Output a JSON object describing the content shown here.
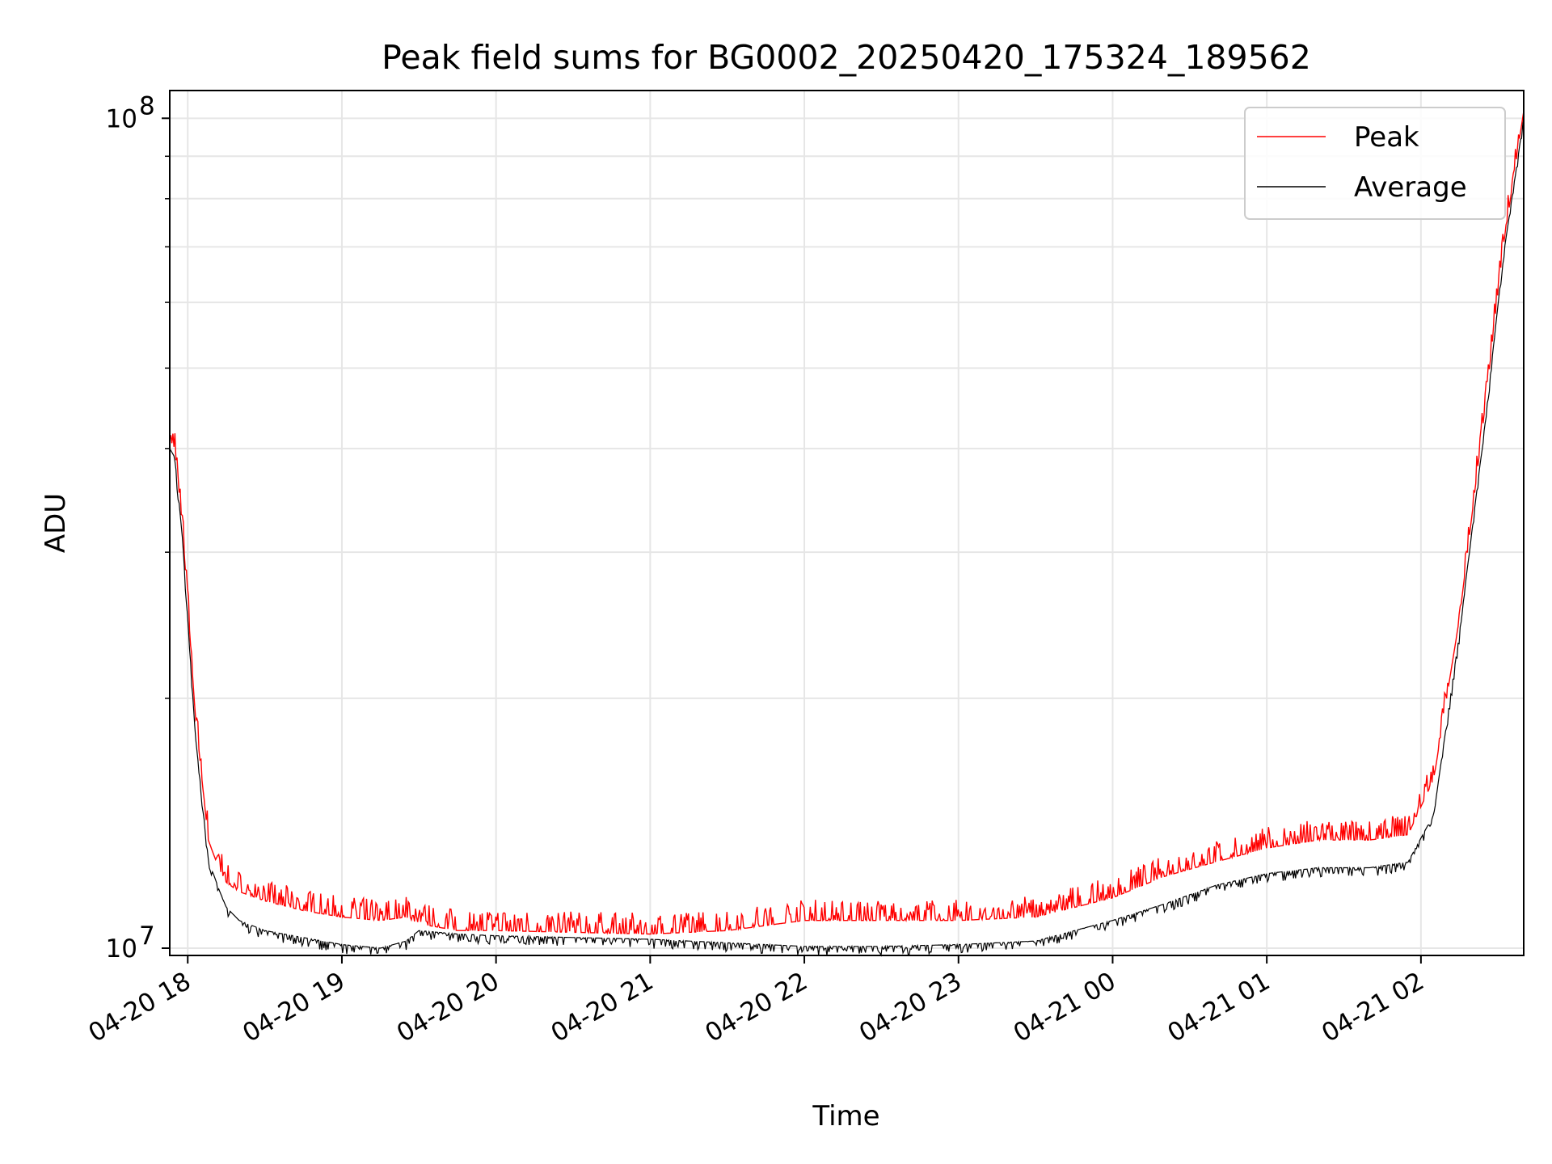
{
  "chart_data": {
    "type": "line",
    "title": "Peak field sums for BG0002_20250420_175324_189562",
    "xlabel": "Time",
    "ylabel": "ADU",
    "yscale": "log",
    "ylim": [
      9800000,
      108000000
    ],
    "xlim": [
      "2025-04-20 17:53",
      "2025-04-21 02:40"
    ],
    "x_ticks": [
      {
        "value": "2025-04-20 18:00",
        "label": "04-20 18"
      },
      {
        "value": "2025-04-20 19:00",
        "label": "04-20 19"
      },
      {
        "value": "2025-04-20 20:00",
        "label": "04-20 20"
      },
      {
        "value": "2025-04-20 21:00",
        "label": "04-20 21"
      },
      {
        "value": "2025-04-20 22:00",
        "label": "04-20 22"
      },
      {
        "value": "2025-04-20 23:00",
        "label": "04-20 23"
      },
      {
        "value": "2025-04-21 00:00",
        "label": "04-21 00"
      },
      {
        "value": "2025-04-21 01:00",
        "label": "04-21 01"
      },
      {
        "value": "2025-04-21 02:00",
        "label": "04-21 02"
      }
    ],
    "y_ticks_major": [
      {
        "value": 10000000,
        "base": "10",
        "exp": "7"
      },
      {
        "value": 100000000,
        "base": "10",
        "exp": "8"
      }
    ],
    "y_ticks_minor": [
      20000000,
      30000000,
      40000000,
      50000000,
      60000000,
      70000000,
      80000000,
      90000000
    ],
    "grid": true,
    "legend_position": "top-right",
    "x": [
      "2025-04-20 17:53",
      "2025-04-20 17:55",
      "2025-04-20 17:58",
      "2025-04-20 18:03",
      "2025-04-20 18:08",
      "2025-04-20 18:12",
      "2025-04-20 18:15",
      "2025-04-20 18:20",
      "2025-04-20 18:30",
      "2025-04-20 18:45",
      "2025-04-20 19:00",
      "2025-04-20 19:15",
      "2025-04-20 19:25",
      "2025-04-20 19:30",
      "2025-04-20 19:45",
      "2025-04-20 20:00",
      "2025-04-20 20:30",
      "2025-04-20 21:00",
      "2025-04-20 21:30",
      "2025-04-20 22:00",
      "2025-04-20 22:30",
      "2025-04-20 23:00",
      "2025-04-20 23:30",
      "2025-04-21 00:00",
      "2025-04-21 00:20",
      "2025-04-21 00:40",
      "2025-04-21 01:00",
      "2025-04-21 01:20",
      "2025-04-21 01:40",
      "2025-04-21 01:55",
      "2025-04-21 02:05",
      "2025-04-21 02:15",
      "2025-04-21 02:25",
      "2025-04-21 02:32",
      "2025-04-21 02:40"
    ],
    "series": [
      {
        "name": "Peak",
        "color": "#ff0000",
        "values": [
          41000000,
          40000000,
          32000000,
          19000000,
          13500000,
          12500000,
          12000000,
          11700000,
          11400000,
          11100000,
          10900000,
          10800000,
          10900000,
          10700000,
          10500000,
          10500000,
          10450000,
          10400000,
          10500000,
          10800000,
          10800000,
          10800000,
          10900000,
          11500000,
          12200000,
          12700000,
          13200000,
          13500000,
          13500000,
          13700000,
          16000000,
          25000000,
          45000000,
          70000000,
          102000000
        ]
      },
      {
        "name": "Average",
        "color": "#000000",
        "values": [
          40000000,
          39000000,
          31000000,
          18000000,
          12800000,
          11800000,
          11200000,
          10800000,
          10500000,
          10300000,
          10100000,
          10000000,
          10200000,
          10500000,
          10400000,
          10350000,
          10300000,
          10250000,
          10150000,
          10050000,
          10050000,
          10100000,
          10200000,
          10800000,
          11300000,
          11900000,
          12300000,
          12500000,
          12500000,
          12700000,
          14500000,
          24000000,
          43000000,
          68000000,
          100000000
        ]
      }
    ]
  }
}
